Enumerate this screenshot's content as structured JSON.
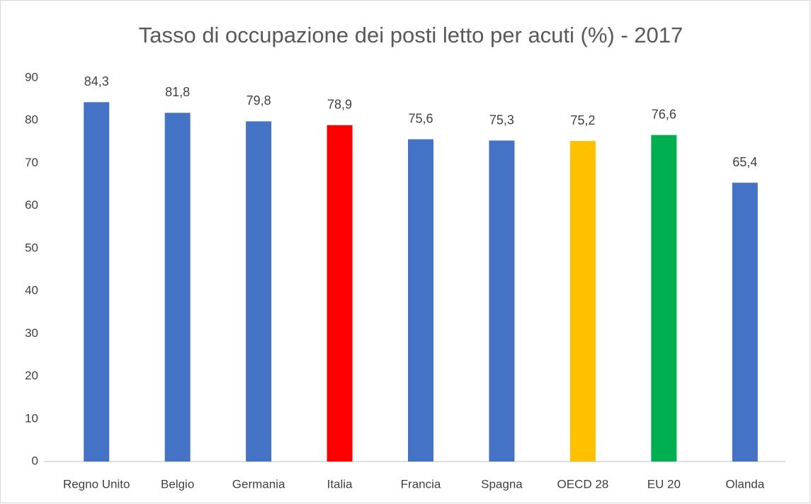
{
  "chart_data": {
    "type": "bar",
    "title": "Tasso di occupazione dei posti letto per acuti (%) - 2017",
    "categories": [
      "Regno Unito",
      "Belgio",
      "Germania",
      "Italia",
      "Francia",
      "Spagna",
      "OECD 28",
      "EU 20",
      "Olanda"
    ],
    "values": [
      84.3,
      81.8,
      79.8,
      78.9,
      75.6,
      75.3,
      75.2,
      76.6,
      65.4
    ],
    "value_labels": [
      "84,3",
      "81,8",
      "79,8",
      "78,9",
      "75,6",
      "75,3",
      "75,2",
      "76,6",
      "65,4"
    ],
    "colors": [
      "#4472c4",
      "#4472c4",
      "#4472c4",
      "#ff0000",
      "#4472c4",
      "#4472c4",
      "#ffc000",
      "#00b050",
      "#4472c4"
    ],
    "ylim": [
      0,
      90
    ],
    "yticks": [
      0,
      10,
      20,
      30,
      40,
      50,
      60,
      70,
      80,
      90
    ],
    "grid": false
  }
}
